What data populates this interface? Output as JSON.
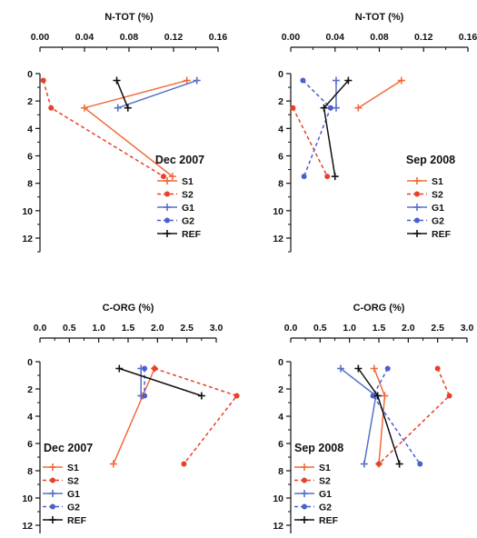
{
  "figure": {
    "series_styles": [
      {
        "name": "S1",
        "color": "#f26b3a",
        "dash": "solid",
        "marker": "plus"
      },
      {
        "name": "S2",
        "color": "#e8402a",
        "dash": "dashed",
        "marker": "dot"
      },
      {
        "name": "G1",
        "color": "#5a6fc8",
        "dash": "solid",
        "marker": "plus"
      },
      {
        "name": "G2",
        "color": "#4a5fd0",
        "dash": "dashed",
        "marker": "dot"
      },
      {
        "name": "REF",
        "color": "#111111",
        "dash": "solid",
        "marker": "plus"
      }
    ]
  },
  "chart_data": [
    {
      "type": "line",
      "orientation": "profile",
      "title": "",
      "xlabel": "N-TOT (%)",
      "ylabel": "",
      "xlim": [
        0,
        0.16
      ],
      "ylim": [
        0,
        12
      ],
      "x_ticks": [
        "0.00",
        "0.04",
        "0.08",
        "0.12",
        "0.16"
      ],
      "y_ticks": [
        "0",
        "2",
        "4",
        "6",
        "8",
        "10",
        "12"
      ],
      "annotation": "Dec 2007",
      "legend": [
        "S1",
        "S2",
        "G1",
        "G2",
        "REF"
      ],
      "grid": false,
      "series": [
        {
          "name": "S1",
          "points": [
            [
              0.132,
              0.5
            ],
            [
              0.04,
              2.5
            ],
            [
              0.119,
              7.5
            ]
          ]
        },
        {
          "name": "S2",
          "points": [
            [
              0.003,
              0.5
            ],
            [
              0.01,
              2.5
            ],
            [
              0.111,
              7.5
            ]
          ]
        },
        {
          "name": "G1",
          "points": [
            [
              0.141,
              0.5
            ],
            [
              0.07,
              2.5
            ]
          ]
        },
        {
          "name": "REF",
          "points": [
            [
              0.069,
              0.5
            ],
            [
              0.079,
              2.5
            ]
          ]
        }
      ]
    },
    {
      "type": "line",
      "orientation": "profile",
      "title": "",
      "xlabel": "N-TOT (%)",
      "ylabel": "",
      "xlim": [
        0,
        0.16
      ],
      "ylim": [
        0,
        12
      ],
      "x_ticks": [
        "0.00",
        "0.04",
        "0.08",
        "0.12",
        "0.16"
      ],
      "y_ticks": [
        "0",
        "2",
        "4",
        "6",
        "8",
        "10",
        "12"
      ],
      "annotation": "Sep 2008",
      "legend": [
        "S1",
        "S2",
        "G1",
        "G2",
        "REF"
      ],
      "grid": false,
      "series": [
        {
          "name": "S1",
          "points": [
            [
              0.1,
              0.5
            ],
            [
              0.061,
              2.5
            ]
          ]
        },
        {
          "name": "S2",
          "points": [
            [
              0.002,
              2.5
            ],
            [
              0.033,
              7.5
            ]
          ]
        },
        {
          "name": "G1",
          "points": [
            [
              0.041,
              0.5
            ],
            [
              0.041,
              2.5
            ]
          ]
        },
        {
          "name": "G2",
          "points": [
            [
              0.011,
              0.5
            ],
            [
              0.036,
              2.5
            ],
            [
              0.012,
              7.5
            ]
          ]
        },
        {
          "name": "REF",
          "points": [
            [
              0.052,
              0.5
            ],
            [
              0.03,
              2.5
            ],
            [
              0.04,
              7.5
            ]
          ]
        }
      ]
    },
    {
      "type": "line",
      "orientation": "profile",
      "title": "",
      "xlabel": "C-ORG (%)",
      "ylabel": "",
      "xlim": [
        0,
        3
      ],
      "ylim": [
        0,
        12
      ],
      "x_ticks": [
        "0.0",
        "0.5",
        "1.0",
        "1.5",
        "2.0",
        "2.5",
        "3.0"
      ],
      "y_ticks": [
        "0",
        "2",
        "4",
        "6",
        "8",
        "10",
        "12"
      ],
      "annotation": "Dec 2007",
      "legend": [
        "S1",
        "S2",
        "G1",
        "G2",
        "REF"
      ],
      "grid": false,
      "series": [
        {
          "name": "S1",
          "points": [
            [
              1.95,
              0.5
            ],
            [
              1.75,
              2.5
            ],
            [
              1.25,
              7.5
            ]
          ]
        },
        {
          "name": "S2",
          "points": [
            [
              1.95,
              0.5
            ],
            [
              3.35,
              2.5
            ],
            [
              2.45,
              7.5
            ]
          ]
        },
        {
          "name": "G1",
          "points": [
            [
              1.72,
              0.5
            ],
            [
              1.72,
              2.5
            ]
          ]
        },
        {
          "name": "G2",
          "points": [
            [
              1.78,
              0.5
            ],
            [
              1.78,
              2.5
            ]
          ]
        },
        {
          "name": "REF",
          "points": [
            [
              1.35,
              0.5
            ],
            [
              2.75,
              2.5
            ]
          ]
        }
      ]
    },
    {
      "type": "line",
      "orientation": "profile",
      "title": "",
      "xlabel": "C-ORG (%)",
      "ylabel": "",
      "xlim": [
        0,
        3
      ],
      "ylim": [
        0,
        12
      ],
      "x_ticks": [
        "0.0",
        "0.5",
        "1.0",
        "1.5",
        "2.0",
        "2.5",
        "3.0"
      ],
      "y_ticks": [
        "0",
        "2",
        "4",
        "6",
        "8",
        "10",
        "12"
      ],
      "annotation": "Sep 2008",
      "legend": [
        "S1",
        "S2",
        "G1",
        "G2",
        "REF"
      ],
      "grid": false,
      "series": [
        {
          "name": "S1",
          "points": [
            [
              1.42,
              0.5
            ],
            [
              1.6,
              2.5
            ],
            [
              1.5,
              7.5
            ]
          ]
        },
        {
          "name": "S2",
          "points": [
            [
              2.5,
              0.5
            ],
            [
              2.7,
              2.5
            ],
            [
              1.5,
              7.5
            ]
          ]
        },
        {
          "name": "G1",
          "points": [
            [
              0.85,
              0.5
            ],
            [
              1.45,
              2.5
            ],
            [
              1.25,
              7.5
            ]
          ]
        },
        {
          "name": "G2",
          "points": [
            [
              1.65,
              0.5
            ],
            [
              1.4,
              2.5
            ],
            [
              2.2,
              7.5
            ]
          ]
        },
        {
          "name": "REF",
          "points": [
            [
              1.15,
              0.5
            ],
            [
              1.48,
              2.5
            ],
            [
              1.85,
              7.5
            ]
          ]
        }
      ]
    }
  ]
}
